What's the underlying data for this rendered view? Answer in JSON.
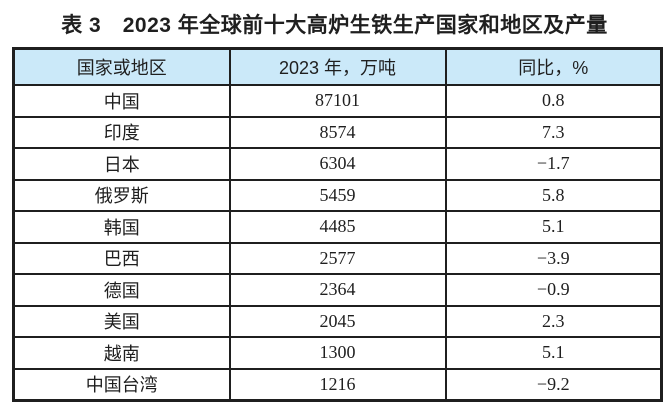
{
  "page": {
    "title": "表 3　2023 年全球前十大高炉生铁生产国家和地区及产量"
  },
  "style": {
    "header_bg": "#cbe9f9",
    "border_color": "#1f1f1f",
    "text_color": "#1f1f1f",
    "page_bg": "#ffffff"
  },
  "chart_data": {
    "type": "table",
    "title": "表 3　2023 年全球前十大高炉生铁生产国家和地区及产量",
    "columns": [
      "国家或地区",
      "2023 年，万吨",
      "同比，%"
    ],
    "rows": [
      [
        "中国",
        "87101",
        "0.8"
      ],
      [
        "印度",
        "8574",
        "7.3"
      ],
      [
        "日本",
        "6304",
        "−1.7"
      ],
      [
        "俄罗斯",
        "5459",
        "5.8"
      ],
      [
        "韩国",
        "4485",
        "5.1"
      ],
      [
        "巴西",
        "2577",
        "−3.9"
      ],
      [
        "德国",
        "2364",
        "−0.9"
      ],
      [
        "美国",
        "2045",
        "2.3"
      ],
      [
        "越南",
        "1300",
        "5.1"
      ],
      [
        "中国台湾",
        "1216",
        "−9.2"
      ]
    ]
  }
}
